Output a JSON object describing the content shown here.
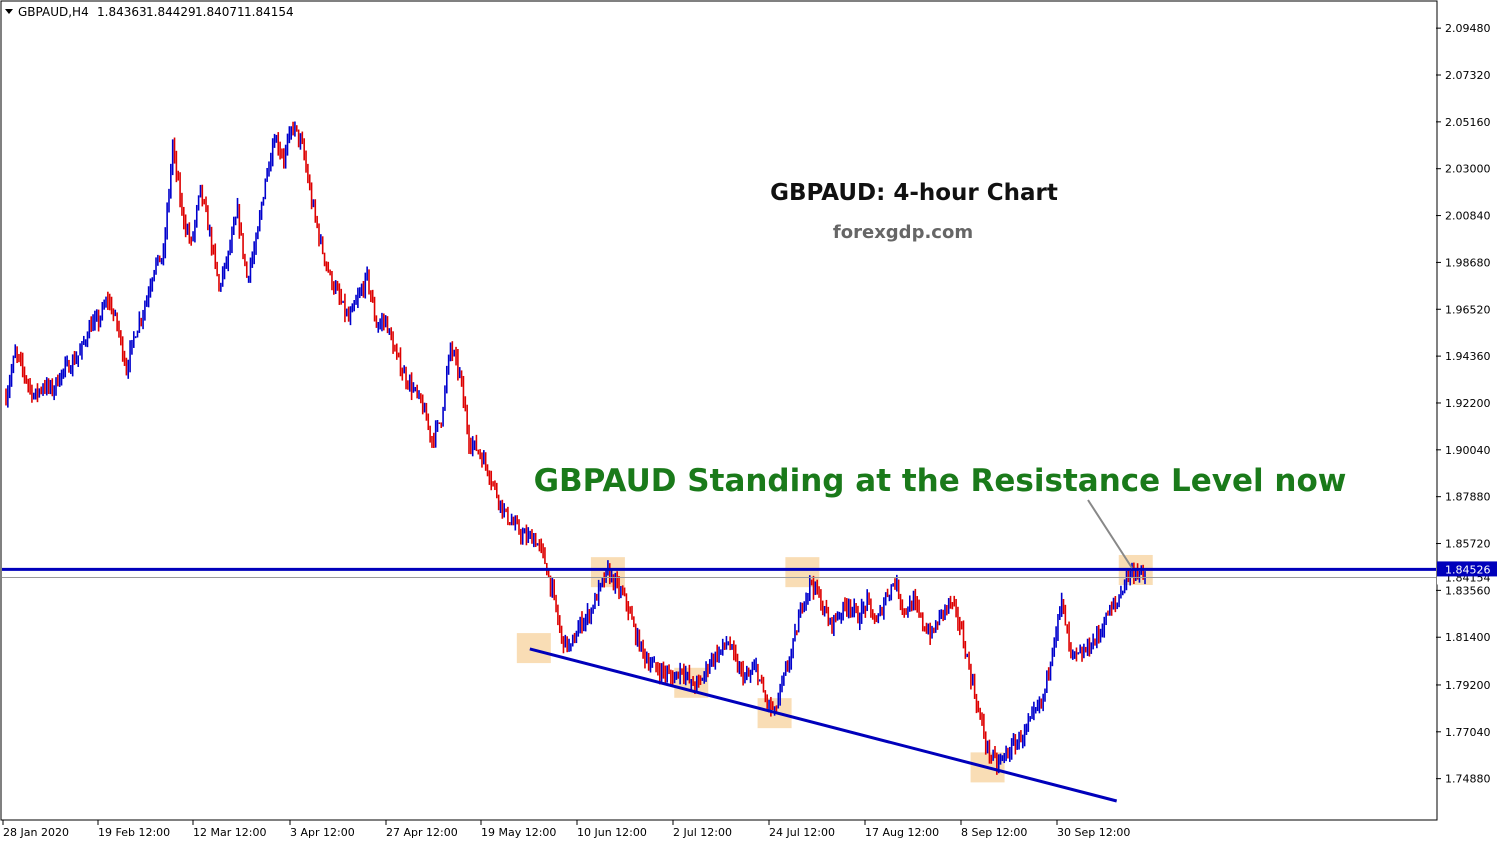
{
  "chart_data": {
    "type": "line",
    "symbol_header": {
      "symbol_timeframe": "GBPAUD,H4",
      "open": "1.84363",
      "high": "1.84429",
      "low": "1.84071",
      "close": "1.84154"
    },
    "title": "GBPAUD: 4-hour Chart",
    "subtitle": "forexgdp.com",
    "annotation": "GBPAUD Standing at the Resistance Level now",
    "ylim": [
      1.7385,
      2.1004
    ],
    "y_ticks": [
      "2.09480",
      "2.07320",
      "2.05160",
      "2.03000",
      "2.00840",
      "1.98680",
      "1.96520",
      "1.94360",
      "1.92200",
      "1.90040",
      "1.87880",
      "1.85720",
      "1.83560",
      "1.81400",
      "1.79200",
      "1.77040",
      "1.74880"
    ],
    "x_ticks": [
      "28 Jan 2020",
      "19 Feb 12:00",
      "12 Mar 12:00",
      "3 Apr 12:00",
      "27 Apr 12:00",
      "19 May 12:00",
      "10 Jun 12:00",
      "2 Jul 12:00",
      "24 Jul 12:00",
      "17 Aug 12:00",
      "8 Sep 12:00",
      "30 Sep 12:00"
    ],
    "resistance_level": {
      "value": 1.84526,
      "label": "1.84526"
    },
    "current_price": {
      "value": 1.84154,
      "label": "1.84154"
    },
    "support_trendline": {
      "start": [
        "19 May 12:00",
        1.8086
      ],
      "end": [
        "30 Sep 12:00",
        1.7385
      ]
    },
    "series": [
      {
        "x": [
          "28 Jan 2020",
          "30 Jan",
          "3 Feb",
          "5 Feb",
          "7 Feb",
          "10 Feb",
          "12 Feb",
          "14 Feb",
          "17 Feb",
          "19 Feb 12:00",
          "21 Feb",
          "24 Feb",
          "26 Feb",
          "28 Feb",
          "2 Mar",
          "4 Mar",
          "6 Mar",
          "9 Mar",
          "10 Mar",
          "11 Mar",
          "12 Mar 12:00",
          "13 Mar",
          "16 Mar",
          "17 Mar",
          "18 Mar",
          "19 Mar",
          "20 Mar",
          "23 Mar",
          "24 Mar",
          "25 Mar",
          "26 Mar",
          "27 Mar",
          "30 Mar",
          "31 Mar",
          "1 Apr",
          "2 Apr",
          "3 Apr 12:00",
          "6 Apr",
          "7 Apr",
          "8 Apr",
          "9 Apr",
          "13 Apr",
          "15 Apr",
          "17 Apr",
          "20 Apr",
          "22 Apr",
          "24 Apr",
          "27 Apr 12:00",
          "29 Apr",
          "1 May",
          "4 May",
          "6 May",
          "8 May",
          "11 May",
          "13 May",
          "15 May",
          "18 May",
          "19 May 12:00",
          "20 May",
          "22 May",
          "25 May",
          "27 May",
          "29 May",
          "1 Jun",
          "3 Jun",
          "5 Jun",
          "8 Jun",
          "10 Jun 12:00",
          "12 Jun",
          "15 Jun",
          "17 Jun",
          "19 Jun",
          "22 Jun",
          "24 Jun",
          "26 Jun",
          "29 Jun",
          "1 Jul",
          "2 Jul 12:00",
          "6 Jul",
          "8 Jul",
          "10 Jul",
          "13 Jul",
          "15 Jul",
          "17 Jul",
          "20 Jul",
          "22 Jul",
          "24 Jul 12:00",
          "27 Jul",
          "29 Jul",
          "31 Jul",
          "3 Aug",
          "5 Aug",
          "7 Aug",
          "10 Aug",
          "12 Aug",
          "14 Aug",
          "17 Aug 12:00",
          "19 Aug",
          "21 Aug",
          "24 Aug",
          "26 Aug",
          "28 Aug",
          "31 Aug",
          "2 Sep",
          "4 Sep",
          "7 Sep",
          "8 Sep 12:00",
          "9 Sep",
          "10 Sep",
          "11 Sep",
          "14 Sep",
          "15 Sep",
          "16 Sep",
          "18 Sep",
          "21 Sep",
          "23 Sep",
          "25 Sep",
          "28 Sep",
          "30 Sep 12:00",
          "2 Oct",
          "5 Oct",
          "7 Oct",
          "8 Oct",
          "9 Oct"
        ],
        "values": [
          1.925,
          1.945,
          1.935,
          1.925,
          1.93,
          1.928,
          1.936,
          1.94,
          1.945,
          1.957,
          1.96,
          1.97,
          1.958,
          1.938,
          1.955,
          1.967,
          1.985,
          1.99,
          2.04,
          2.01,
          1.995,
          2.02,
          2.0,
          1.975,
          1.99,
          2.01,
          1.98,
          1.995,
          2.025,
          2.045,
          2.035,
          2.05,
          2.04,
          2.015,
          1.995,
          1.98,
          1.97,
          1.96,
          1.97,
          1.98,
          1.958,
          1.96,
          1.945,
          1.935,
          1.928,
          1.92,
          1.905,
          1.915,
          1.948,
          1.935,
          1.905,
          1.9,
          1.892,
          1.88,
          1.87,
          1.865,
          1.86,
          1.86,
          1.852,
          1.835,
          1.813,
          1.809,
          1.82,
          1.825,
          1.835,
          1.844,
          1.837,
          1.83,
          1.815,
          1.805,
          1.8,
          1.798,
          1.795,
          1.8,
          1.792,
          1.793,
          1.803,
          1.807,
          1.812,
          1.8,
          1.795,
          1.8,
          1.785,
          1.779,
          1.795,
          1.81,
          1.83,
          1.84,
          1.83,
          1.82,
          1.825,
          1.83,
          1.823,
          1.83,
          1.82,
          1.833,
          1.84,
          1.826,
          1.83,
          1.82,
          1.815,
          1.825,
          1.83,
          1.82,
          1.8,
          1.78,
          1.762,
          1.755,
          1.76,
          1.765,
          1.77,
          1.778,
          1.785,
          1.81,
          1.83,
          1.805,
          1.805,
          1.81,
          1.815,
          1.825,
          1.83,
          1.842,
          1.845,
          1.8415
        ]
      }
    ],
    "highlight_zones": [
      {
        "x": "19 May 12:00",
        "y": 1.809
      },
      {
        "x": "5 Jun",
        "y": 1.844
      },
      {
        "x": "26 Jun",
        "y": 1.793
      },
      {
        "x": "17 Jul",
        "y": 1.779
      },
      {
        "x": "24 Jul 12:00",
        "y": 1.844
      },
      {
        "x": "8 Sep 12:00",
        "y": 1.754
      },
      {
        "x": "8 Oct",
        "y": 1.845
      }
    ],
    "colors": {
      "bull": "#0000cc",
      "bear": "#dd0000",
      "resistance": "#0000bb",
      "trendline": "#0000bb",
      "highlight": "#f8d7a8",
      "annotation": "#1a7a1a",
      "title": "#111111",
      "subtitle": "#666666",
      "price_label_bg": "#0000bb"
    },
    "grid": false,
    "legend": "none"
  }
}
